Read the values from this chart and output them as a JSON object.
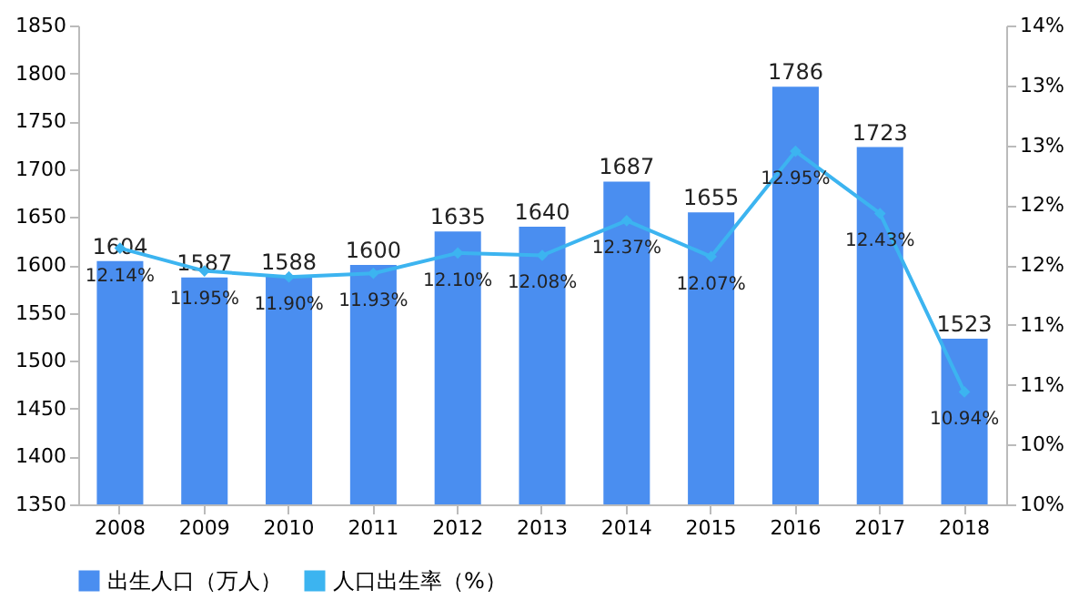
{
  "chart_data": {
    "type": "bar",
    "categories": [
      "2008",
      "2009",
      "2010",
      "2011",
      "2012",
      "2013",
      "2014",
      "2015",
      "2016",
      "2017",
      "2018"
    ],
    "series": [
      {
        "name": "出生人口（万人）",
        "color": "#4a8ef0",
        "values": [
          1604,
          1587,
          1588,
          1600,
          1635,
          1640,
          1687,
          1655,
          1786,
          1723,
          1523
        ],
        "value_labels": [
          "1604",
          "1587",
          "1588",
          "1600",
          "1635",
          "1640",
          "1687",
          "1655",
          "1786",
          "1723",
          "1523"
        ]
      },
      {
        "name": "人口出生率（%）",
        "type": "line",
        "axis": "y2",
        "color": "#3cb4f0",
        "marker": "diamond",
        "values": [
          12.14,
          11.95,
          11.9,
          11.93,
          12.1,
          12.08,
          12.37,
          12.07,
          12.95,
          12.43,
          10.94
        ],
        "value_labels": [
          "12.14%",
          "11.95%",
          "11.90%",
          "11.93%",
          "12.10%",
          "12.08%",
          "12.37%",
          "12.07%",
          "12.95%",
          "12.43%",
          "10.94%"
        ]
      }
    ],
    "ylim": [
      1350,
      1850
    ],
    "yticks": [
      1350,
      1400,
      1450,
      1500,
      1550,
      1600,
      1650,
      1700,
      1750,
      1800,
      1850
    ],
    "y2lim": [
      10,
      14
    ],
    "y2ticks": [
      {
        "value": 10,
        "label": "10%"
      },
      {
        "value": 10.5,
        "label": "10%"
      },
      {
        "value": 11,
        "label": "11%"
      },
      {
        "value": 11.5,
        "label": "11%"
      },
      {
        "value": 12,
        "label": "12%"
      },
      {
        "value": 12.5,
        "label": "12%"
      },
      {
        "value": 13,
        "label": "13%"
      },
      {
        "value": 13.5,
        "label": "13%"
      },
      {
        "value": 14,
        "label": "14%"
      }
    ],
    "grid": false,
    "legend": "bottom"
  }
}
